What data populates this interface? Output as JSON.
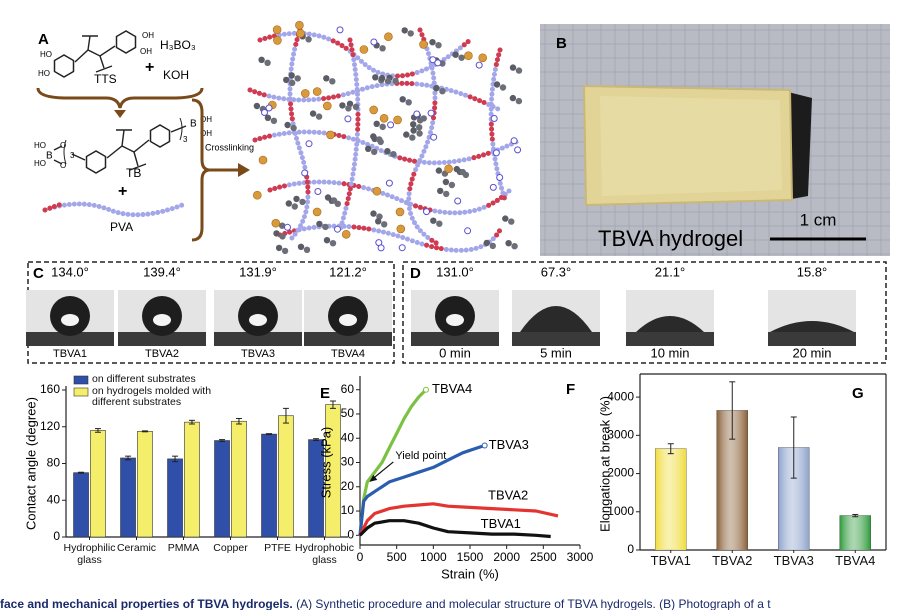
{
  "panel_a": {
    "label": "A",
    "reagents": [
      "TTS",
      "H₃BO₃",
      "KOH"
    ],
    "plus": "+",
    "product": "TB",
    "polymer": "PVA",
    "step": "Crosslinking",
    "groups": {
      "oh": "OH",
      "ho": "HO",
      "boron": "B",
      "oxygen": "O",
      "count": "3"
    }
  },
  "panel_b": {
    "label": "B",
    "caption": "TBVA hydrogel",
    "scale": "1 cm"
  },
  "panel_c": {
    "label": "C",
    "angles": [
      "134.0°",
      "139.4°",
      "131.9°",
      "121.2°"
    ],
    "samples": [
      "TBVA1",
      "TBVA2",
      "TBVA3",
      "TBVA4"
    ]
  },
  "panel_d": {
    "label": "D",
    "angles": [
      "131.0°",
      "67.3°",
      "21.1°",
      "15.8°"
    ],
    "times": [
      "0 min",
      "5 min",
      "10 min",
      "20 min"
    ]
  },
  "chart_data": [
    {
      "type": "bar",
      "label": "E",
      "ylabel": "Contact angle (degree)",
      "categories": [
        "Hydrophilic glass",
        "Ceramic",
        "PMMA",
        "Copper",
        "PTFE",
        "Hydrophobic glass"
      ],
      "series": [
        {
          "name": "on different substrates",
          "color": "#2f4fa8",
          "values": [
            70,
            86,
            85,
            105,
            112,
            106
          ],
          "errors": [
            0.5,
            2,
            3,
            1,
            0.5,
            1
          ]
        },
        {
          "name": "on hydrogels molded with different substrates",
          "color": "#f5ee6a",
          "values": [
            116,
            115,
            125,
            126,
            132,
            144
          ],
          "errors": [
            2,
            0.5,
            2,
            3,
            8,
            4
          ]
        }
      ],
      "ylim": [
        0,
        160
      ],
      "yticks": [
        0,
        40,
        80,
        120,
        160
      ],
      "legend": "top-left"
    },
    {
      "type": "line",
      "label": "F",
      "xlabel": "Strain (%)",
      "ylabel": "Stress (kPa)",
      "annotation": "Yield point",
      "xlim": [
        0,
        3000
      ],
      "xticks": [
        0,
        500,
        1000,
        1500,
        2000,
        2500,
        3000
      ],
      "ylim": [
        -4,
        64
      ],
      "yticks": [
        0,
        10,
        20,
        30,
        40,
        50,
        60
      ],
      "series": [
        {
          "name": "TBVA4",
          "color": "#7cc142",
          "x": [
            0,
            50,
            100,
            200,
            300,
            400,
            500,
            600,
            700,
            800,
            900
          ],
          "values": [
            0,
            15,
            22,
            26,
            30,
            36,
            42,
            48,
            53,
            57,
            60
          ]
        },
        {
          "name": "TBVA3",
          "color": "#2a5db0",
          "x": [
            0,
            50,
            100,
            200,
            400,
            600,
            800,
            1000,
            1200,
            1400,
            1600,
            1700
          ],
          "values": [
            0,
            14,
            16,
            18,
            22,
            24,
            26,
            28,
            31,
            34,
            36,
            37
          ]
        },
        {
          "name": "TBVA2",
          "color": "#e3342f",
          "x": [
            0,
            100,
            200,
            400,
            600,
            800,
            1000,
            1200,
            1500,
            1800,
            2100,
            2400,
            2700
          ],
          "values": [
            0,
            6,
            9,
            11,
            12,
            12.5,
            13,
            12,
            11.5,
            11,
            10.5,
            10,
            8
          ]
        },
        {
          "name": "TBVA1",
          "color": "#111111",
          "x": [
            0,
            100,
            200,
            400,
            600,
            800,
            1000,
            1200,
            1500,
            1800,
            2100,
            2400,
            2600
          ],
          "values": [
            0,
            3,
            5,
            6,
            6,
            5,
            3,
            1.5,
            1,
            0.5,
            0.5,
            0,
            -0.5
          ]
        }
      ]
    },
    {
      "type": "bar",
      "label": "G",
      "ylabel": "Elongation at break (%)",
      "categories": [
        "TBVA1",
        "TBVA2",
        "TBVA3",
        "TBVA4"
      ],
      "values": [
        2650,
        3650,
        2680,
        900
      ],
      "errors": [
        130,
        750,
        800,
        30
      ],
      "colors": [
        "#f0dc3c",
        "#8a6038",
        "#8ea2cc",
        "#2f9a3c"
      ],
      "ylim": [
        0,
        4500
      ],
      "yticks": [
        0,
        1000,
        2000,
        3000,
        4000
      ]
    }
  ],
  "caption": {
    "bold": "face and mechanical properties of TBVA hydrogels.",
    "text": "(A) Synthetic procedure and molecular structure of TBVA hydrogels. (B) Photograph of a t"
  }
}
